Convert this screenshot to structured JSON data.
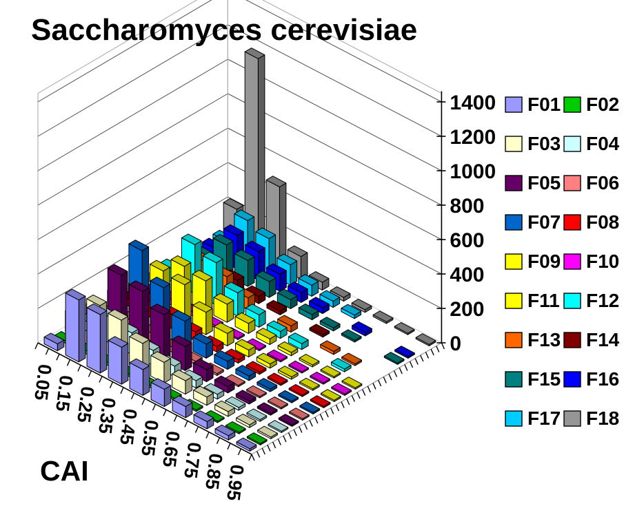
{
  "title": "Saccharomyces cerevisiae",
  "chart_data": {
    "type": "bar",
    "subtype": "3d-column",
    "title": "Saccharomyces cerevisiae",
    "xlabel": "CAI",
    "ylabel": "",
    "grid": true,
    "legend_position": "right",
    "categories": [
      "0.05",
      "0.15",
      "0.25",
      "0.35",
      "0.45",
      "0.55",
      "0.65",
      "0.75",
      "0.85",
      "0.95"
    ],
    "value_axis": {
      "min": 0,
      "max": 1400,
      "step": 200,
      "axis_top": 1450,
      "tick_labels": [
        "0",
        "200",
        "400",
        "600",
        "800",
        "1000",
        "1200",
        "1400"
      ]
    },
    "series": [
      {
        "name": "F01",
        "color": "#9999FF",
        "values": [
          40,
          360,
          340,
          215,
          150,
          100,
          65,
          42,
          25,
          14
        ]
      },
      {
        "name": "F02",
        "color": "#00CC00",
        "values": [
          14,
          20,
          18,
          15,
          13,
          11,
          9,
          8,
          7,
          6
        ]
      },
      {
        "name": "F03",
        "color": "#FFFFCC",
        "values": [
          120,
          255,
          235,
          165,
          120,
          78,
          48,
          28,
          16,
          10
        ]
      },
      {
        "name": "F04",
        "color": "#CCFFFF",
        "values": [
          55,
          150,
          125,
          88,
          62,
          42,
          28,
          16,
          10,
          7
        ]
      },
      {
        "name": "F05",
        "color": "#660066",
        "values": [
          90,
          360,
          330,
          260,
          140,
          70,
          36,
          18,
          10,
          6
        ]
      },
      {
        "name": "F06",
        "color": "#FF8080",
        "values": [
          28,
          60,
          48,
          30,
          18,
          11,
          7,
          5,
          4,
          3
        ]
      },
      {
        "name": "F07",
        "color": "#0066CC",
        "values": [
          95,
          430,
          280,
          150,
          82,
          46,
          26,
          15,
          9,
          6
        ]
      },
      {
        "name": "F08",
        "color": "#FF0000",
        "values": [
          40,
          95,
          82,
          52,
          32,
          20,
          13,
          9,
          6,
          4
        ]
      },
      {
        "name": "F09",
        "color": "#FFFF00",
        "values": [
          65,
          240,
          225,
          130,
          72,
          40,
          24,
          14,
          9,
          5
        ]
      },
      {
        "name": "F10",
        "color": "#FF00FF",
        "values": [
          10,
          32,
          24,
          13,
          8,
          5,
          3,
          2,
          2,
          1
        ]
      },
      {
        "name": "F11",
        "color": "#FFFF00",
        "values": [
          55,
          195,
          175,
          105,
          58,
          33,
          19,
          11,
          6,
          4
        ]
      },
      {
        "name": "F12",
        "color": "#00FFFF",
        "values": [
          75,
          285,
          245,
          135,
          72,
          40,
          34,
          0,
          16,
          0
        ]
      },
      {
        "name": "F13",
        "color": "#FF6600",
        "values": [
          38,
          150,
          128,
          70,
          0,
          36,
          0,
          18,
          10,
          0
        ]
      },
      {
        "name": "F14",
        "color": "#800000",
        "values": [
          26,
          88,
          70,
          42,
          22,
          0,
          13,
          0,
          0,
          0
        ]
      },
      {
        "name": "F15",
        "color": "#008080",
        "values": [
          48,
          175,
          150,
          92,
          52,
          30,
          18,
          10,
          0,
          6
        ]
      },
      {
        "name": "F16",
        "color": "#0000FF",
        "values": [
          52,
          195,
          165,
          98,
          56,
          33,
          0,
          20,
          0,
          8
        ]
      },
      {
        "name": "F17",
        "color": "#00CCFF",
        "values": [
          62,
          245,
          205,
          118,
          64,
          36,
          20,
          0,
          0,
          0
        ]
      },
      {
        "name": "F18",
        "color": "#969696",
        "values": [
          210,
          1150,
          470,
          130,
          45,
          22,
          15,
          10,
          8,
          6
        ]
      }
    ]
  },
  "legend": {
    "columns": 2,
    "items": [
      "F01",
      "F02",
      "F03",
      "F04",
      "F05",
      "F06",
      "F07",
      "F08",
      "F09",
      "F10",
      "F11",
      "F12",
      "F13",
      "F14",
      "F15",
      "F16",
      "F17",
      "F18"
    ]
  },
  "style_colors": {
    "wall_fill": "#FFFFFF",
    "wall_edge": "#B3B3B3",
    "gridline": "#4D4D4D",
    "axis_line": "#000000",
    "text": "#000000"
  }
}
